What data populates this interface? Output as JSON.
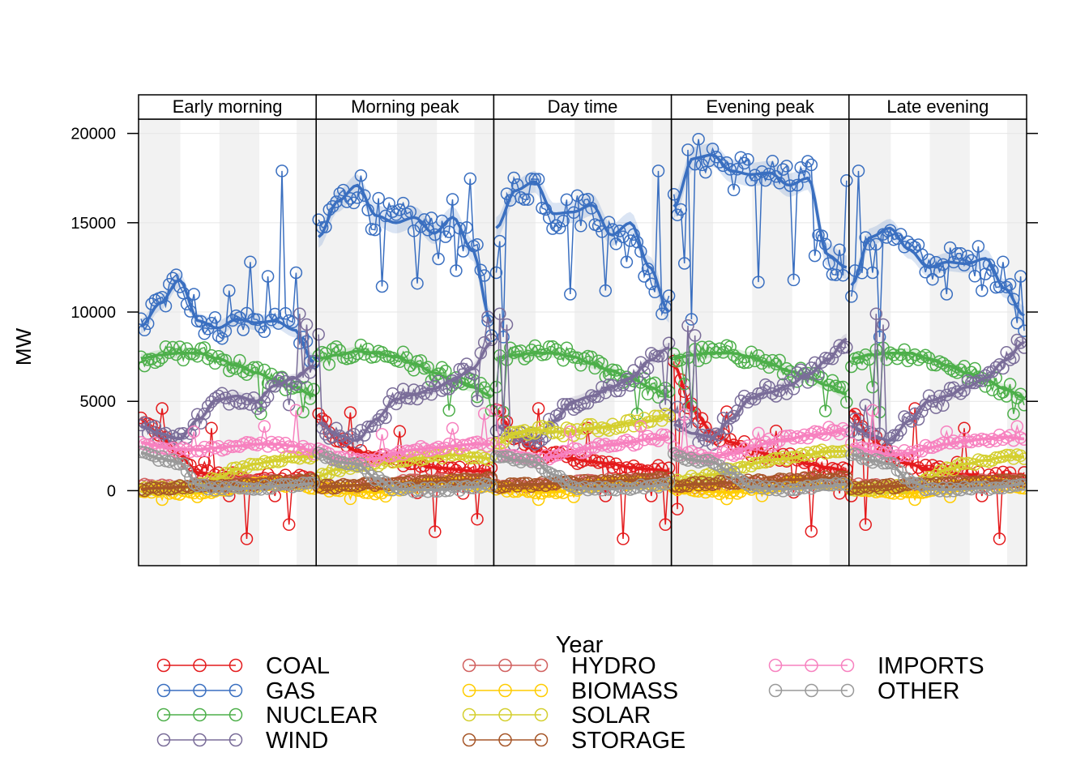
{
  "chart_data": {
    "type": "line",
    "ylabel": "MW",
    "ylim": [
      -4200,
      20800
    ],
    "yticks": [
      0,
      5000,
      10000,
      15000,
      20000
    ],
    "panels": [
      "Early morning",
      "Morning peak",
      "Day time",
      "Evening peak",
      "Late evening"
    ],
    "points_per_panel": 50,
    "grid": true,
    "legend_position": "bottom",
    "legend_title": "Year",
    "series": [
      {
        "name": "COAL",
        "color": "#E41A1C",
        "anchors": [
          [
            4000,
            3000,
            2000,
            1000,
            900,
            800,
            700,
            700,
            700,
            700
          ],
          [
            4200,
            2800,
            2200,
            1900,
            1700,
            1500,
            1300,
            1200,
            1100,
            1100
          ],
          [
            4500,
            3000,
            2300,
            2000,
            1800,
            1600,
            1500,
            1300,
            1200,
            1100
          ],
          [
            7000,
            4500,
            3300,
            2700,
            2300,
            2000,
            1800,
            1500,
            1300,
            1100
          ],
          [
            4500,
            3000,
            2000,
            1500,
            1200,
            1000,
            900,
            800,
            800,
            800
          ]
        ],
        "spikes": [
          [
            6,
            4600
          ],
          [
            20,
            3500
          ],
          [
            25,
            -300
          ],
          [
            30,
            -2700
          ],
          [
            38,
            -300
          ],
          [
            42,
            -1900
          ],
          [
            18,
            1600
          ]
        ]
      },
      {
        "name": "GAS",
        "color": "#3A6FC0",
        "anchors": [
          [
            9200,
            10500,
            11800,
            9500,
            9100,
            9600,
            9400,
            9500,
            9000,
            7200
          ],
          [
            14200,
            16200,
            17100,
            15400,
            15000,
            15300,
            14400,
            15300,
            13500,
            9400
          ],
          [
            14700,
            16800,
            17300,
            15500,
            15600,
            16000,
            14300,
            15000,
            12500,
            10000
          ],
          [
            15900,
            18600,
            18800,
            17900,
            17700,
            17800,
            17100,
            17500,
            13200,
            12500
          ],
          [
            11500,
            14200,
            14700,
            13500,
            12500,
            12800,
            12700,
            13000,
            11300,
            9800
          ]
        ],
        "spikes": [
          [
            15,
            11000
          ],
          [
            25,
            11200
          ],
          [
            31,
            12800
          ],
          [
            36,
            12000
          ],
          [
            40,
            17900
          ],
          [
            44,
            12200
          ],
          [
            46,
            8600
          ]
        ]
      },
      {
        "name": "NUCLEAR",
        "color": "#4DAF4A",
        "anchors": [
          [
            7400,
            7600,
            7700,
            7700,
            7400,
            7000,
            6600,
            6200,
            5800,
            5300
          ],
          [
            7400,
            7600,
            7800,
            7700,
            7500,
            7100,
            6600,
            6200,
            5800,
            5300
          ],
          [
            7400,
            7600,
            7700,
            7700,
            7500,
            7100,
            6700,
            6300,
            5800,
            5300
          ],
          [
            7400,
            7600,
            7700,
            7700,
            7500,
            7100,
            6700,
            6300,
            5900,
            5400
          ],
          [
            7400,
            7600,
            7700,
            7700,
            7400,
            7000,
            6600,
            6200,
            5700,
            5200
          ]
        ],
        "spikes": [
          [
            34,
            4300
          ],
          [
            44,
            5800
          ],
          [
            46,
            4400
          ]
        ]
      },
      {
        "name": "WIND",
        "color": "#7A6D99",
        "anchors": [
          [
            3600,
            3200,
            2900,
            4000,
            5100,
            5300,
            5000,
            5900,
            6300,
            7000
          ],
          [
            3800,
            3100,
            2800,
            4000,
            5100,
            5400,
            5700,
            6200,
            6800,
            8300
          ],
          [
            3600,
            3000,
            2800,
            3900,
            5000,
            5300,
            5800,
            6300,
            7300,
            8000
          ],
          [
            3700,
            3200,
            3000,
            4000,
            5200,
            5500,
            5900,
            6500,
            7300,
            8500
          ],
          [
            3600,
            3100,
            2800,
            3900,
            5000,
            5300,
            5800,
            6300,
            7300,
            8300
          ]
        ],
        "spikes": [
          [
            45,
            9900
          ],
          [
            47,
            9300
          ],
          [
            42,
            4800
          ]
        ]
      },
      {
        "name": "HYDRO",
        "color": "#D1605F",
        "anchors": [
          [
            300,
            250,
            200,
            300,
            400,
            450,
            500,
            550,
            500,
            500
          ],
          [
            300,
            250,
            250,
            350,
            450,
            500,
            550,
            600,
            550,
            550
          ],
          [
            300,
            250,
            250,
            350,
            450,
            500,
            550,
            600,
            550,
            550
          ],
          [
            300,
            250,
            250,
            350,
            450,
            500,
            550,
            600,
            550,
            550
          ],
          [
            300,
            250,
            200,
            300,
            400,
            450,
            500,
            550,
            500,
            500
          ]
        ],
        "spikes": []
      },
      {
        "name": "BIOMASS",
        "color": "#FFCC00",
        "anchors": [
          [
            50,
            0,
            -100,
            -150,
            50,
            200,
            350,
            400,
            300,
            200
          ],
          [
            100,
            50,
            -50,
            -100,
            100,
            250,
            400,
            450,
            350,
            300
          ],
          [
            100,
            50,
            -50,
            -100,
            100,
            250,
            400,
            450,
            350,
            300
          ],
          [
            100,
            50,
            -50,
            -100,
            100,
            250,
            400,
            450,
            350,
            300
          ],
          [
            50,
            0,
            -100,
            -150,
            50,
            200,
            350,
            400,
            300,
            200
          ]
        ],
        "spikes": [
          [
            6,
            -500
          ],
          [
            16,
            -350
          ]
        ]
      },
      {
        "name": "SOLAR",
        "color": "#D4CF2E",
        "anchors": [
          [
            100,
            100,
            150,
            300,
            700,
            1200,
            1500,
            1700,
            1900,
            1900
          ],
          [
            800,
            1200,
            1400,
            1500,
            1700,
            1800,
            1900,
            2000,
            1900,
            1800
          ],
          [
            2600,
            3200,
            3400,
            3300,
            3300,
            3500,
            3600,
            3800,
            3900,
            4200
          ],
          [
            500,
            700,
            900,
            1200,
            1500,
            1700,
            1800,
            2000,
            2200,
            2200
          ],
          [
            100,
            100,
            150,
            300,
            700,
            1200,
            1500,
            1700,
            1900,
            1900
          ]
        ],
        "spikes": []
      },
      {
        "name": "STORAGE",
        "color": "#A65628",
        "anchors": [
          [
            100,
            150,
            200,
            250,
            300,
            350,
            400,
            450,
            500,
            550
          ],
          [
            200,
            250,
            300,
            350,
            400,
            450,
            500,
            550,
            600,
            650
          ],
          [
            250,
            300,
            350,
            400,
            450,
            500,
            550,
            600,
            650,
            700
          ],
          [
            300,
            350,
            400,
            450,
            500,
            550,
            600,
            650,
            700,
            750
          ],
          [
            150,
            200,
            250,
            300,
            350,
            400,
            450,
            500,
            550,
            600
          ]
        ],
        "spikes": []
      },
      {
        "name": "IMPORTS",
        "color": "#F781BF",
        "anchors": [
          [
            2700,
            2500,
            2300,
            2300,
            2400,
            2500,
            2600,
            2600,
            2500,
            2200
          ],
          [
            2200,
            1800,
            1700,
            1800,
            2100,
            2300,
            2400,
            2500,
            2600,
            2600
          ],
          [
            2200,
            1800,
            1700,
            1900,
            2200,
            2400,
            2600,
            2700,
            2900,
            3000
          ],
          [
            2300,
            2000,
            1900,
            2100,
            2400,
            2700,
            2900,
            3100,
            3200,
            3400
          ],
          [
            2500,
            2200,
            2000,
            2100,
            2400,
            2600,
            2800,
            2900,
            3000,
            2900
          ]
        ],
        "spikes": [
          [
            15,
            3300
          ],
          [
            35,
            3600
          ],
          [
            44,
            4500
          ]
        ]
      },
      {
        "name": "OTHER",
        "color": "#999999",
        "anchors": [
          [
            2100,
            1800,
            1600,
            300,
            100,
            100,
            150,
            250,
            300,
            400
          ],
          [
            2000,
            1600,
            1500,
            700,
            100,
            50,
            50,
            100,
            200,
            300
          ],
          [
            2000,
            1700,
            1600,
            900,
            150,
            100,
            100,
            150,
            250,
            350
          ],
          [
            2000,
            1700,
            1600,
            1000,
            200,
            100,
            100,
            150,
            250,
            350
          ],
          [
            2000,
            1700,
            1500,
            600,
            100,
            50,
            100,
            150,
            250,
            400
          ]
        ],
        "spikes": []
      }
    ]
  }
}
